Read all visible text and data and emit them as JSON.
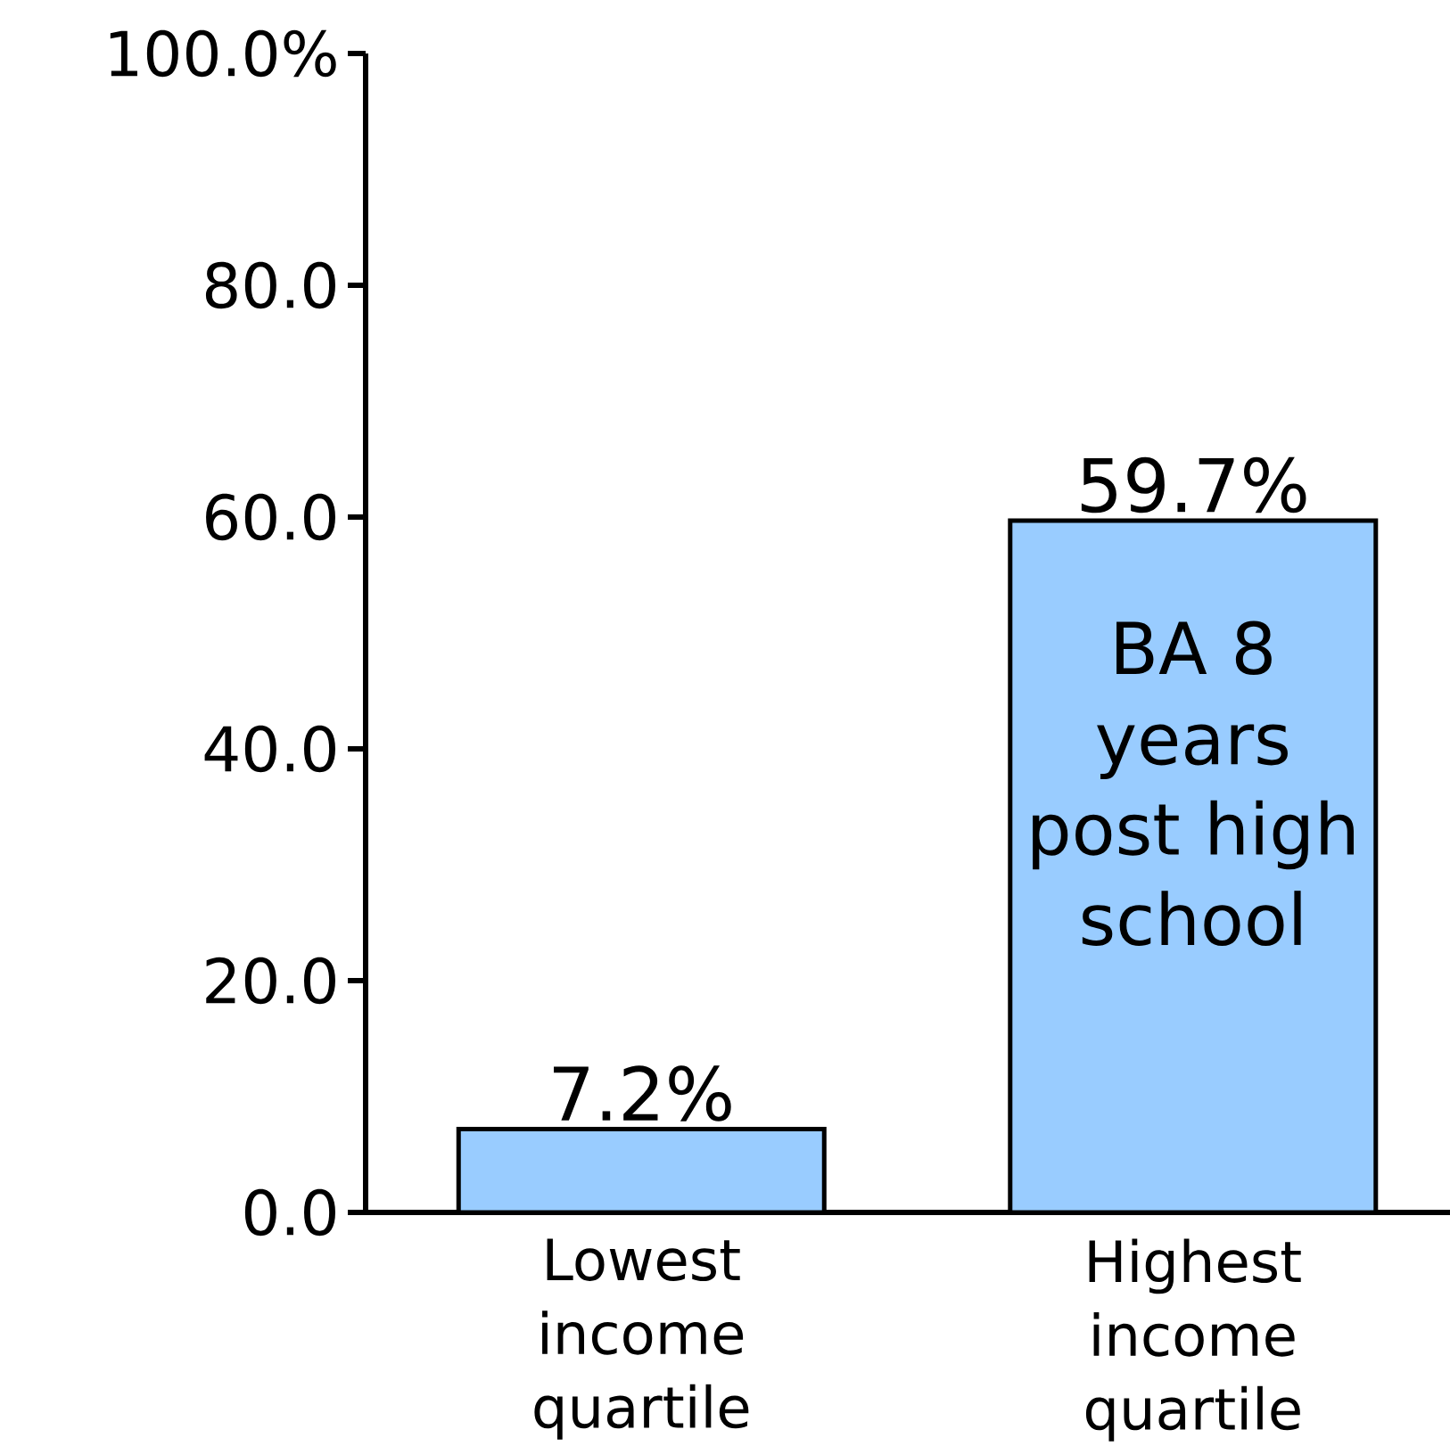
{
  "chart_data": {
    "type": "bar",
    "categories": [
      "Lowest income quartile",
      "Highest income quartile"
    ],
    "values": [
      7.2,
      59.7
    ],
    "value_labels": [
      "7.2%",
      "59.7%"
    ],
    "color": "#99ccff",
    "ylim": [
      0,
      100
    ],
    "yticks": [
      {
        "value": 0,
        "label": "0.0"
      },
      {
        "value": 20,
        "label": "20.0"
      },
      {
        "value": 40,
        "label": "40.0"
      },
      {
        "value": 60,
        "label": "60.0"
      },
      {
        "value": 80,
        "label": "80.0"
      },
      {
        "value": 100,
        "label": "100.0%"
      }
    ],
    "annotations": [
      "BA 8 years post high school"
    ],
    "grid": false
  }
}
